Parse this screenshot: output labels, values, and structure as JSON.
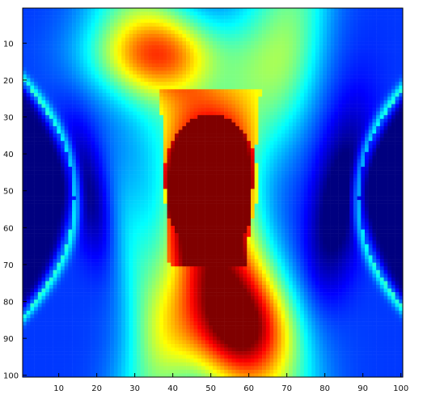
{
  "chart_data": {
    "type": "heatmap",
    "colormap": "jet",
    "x_ticks": [
      10,
      20,
      30,
      40,
      50,
      60,
      70,
      80,
      90,
      100
    ],
    "y_ticks": [
      10,
      20,
      30,
      40,
      50,
      60,
      70,
      80,
      90,
      100
    ],
    "x_tick_labels": [
      "10",
      "20",
      "30",
      "40",
      "50",
      "60",
      "70",
      "80",
      "90",
      "100"
    ],
    "y_tick_labels": [
      "10",
      "20",
      "30",
      "40",
      "50",
      "60",
      "70",
      "80",
      "90",
      "100"
    ],
    "xlim": [
      0.5,
      100.5
    ],
    "ylim": [
      0.5,
      100.5
    ],
    "y_direction": "reverse",
    "grid": false,
    "x_tick_labels_visible": true,
    "y_tick_labels_visible": true,
    "background_value": 0.0
  }
}
